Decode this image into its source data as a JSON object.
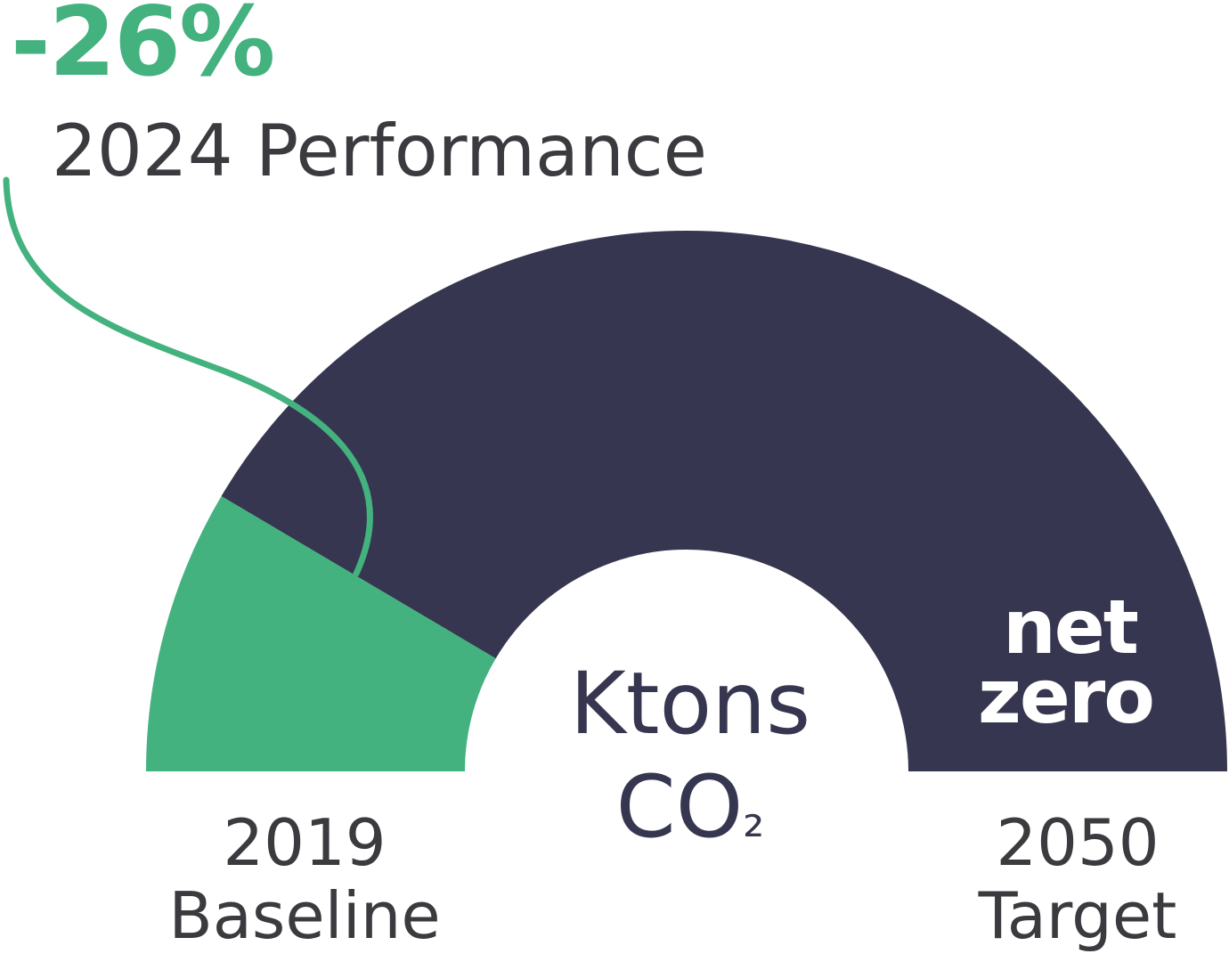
{
  "colors": {
    "progress": "#43b27e",
    "remaining": "#363650",
    "text": "#3a3a3f",
    "inner_text": "#363650",
    "end_text": "#ffffff",
    "background": "#ffffff"
  },
  "headline": {
    "value": "-26%",
    "label": "2024 Performance"
  },
  "center": {
    "line1": "Ktons",
    "line2_main": "CO",
    "line2_sub": "₂"
  },
  "end_label": {
    "line1": "net",
    "line2": "zero"
  },
  "left_label": {
    "year": "2019",
    "name": "Baseline"
  },
  "right_label": {
    "year": "2050",
    "name": "Target"
  },
  "chart_data": {
    "type": "gauge",
    "scale_start": "2019 Baseline",
    "scale_end": "2050 Target",
    "progress_fraction": 0.17,
    "progress_label": "-26%",
    "progress_caption": "2024 Performance",
    "unit_label": "Ktons CO₂",
    "end_value_label": "net zero"
  }
}
